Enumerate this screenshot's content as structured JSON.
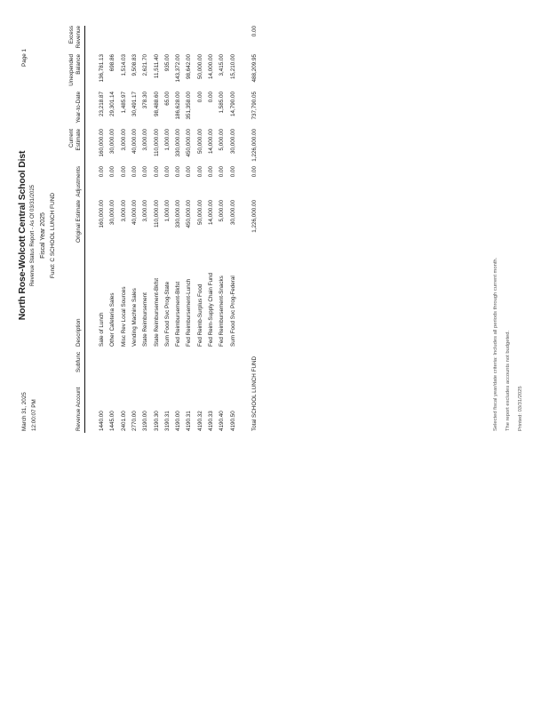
{
  "header": {
    "date": "March 31, 2025",
    "time": "12:00:07 PM",
    "title": "North Rose-Wolcott Central School Dist",
    "subtitle": "Revenue Status Report - As Of 03/31/2025",
    "fiscal_year": "Fiscal Year 2025",
    "fund": "Fund: C SCHOOL LUNCH FUND",
    "page": "Page 1"
  },
  "columns": [
    "Revenue Account",
    "Subfunc",
    "Description",
    "Original Estimate",
    "Adjustments",
    "Current Estimate",
    "Year-to-Date",
    "Unexpended Balance",
    "Excess Revenue"
  ],
  "rows": [
    {
      "account": "1440.00",
      "subfunc": "",
      "description": "Sale of Lunch",
      "original": "160,000.00",
      "adjustments": "0.00",
      "current": "160,000.00",
      "ytd": "23,218.87",
      "unexpended": "136,781.13",
      "excess": ""
    },
    {
      "account": "1445.00",
      "subfunc": "",
      "description": "Other Cafeteria Sales",
      "original": "30,000.00",
      "adjustments": "0.00",
      "current": "30,000.00",
      "ytd": "29,301.14",
      "unexpended": "698.86",
      "excess": ""
    },
    {
      "account": "2401.00",
      "subfunc": "",
      "description": "Misc Rev Local Sources",
      "original": "3,000.00",
      "adjustments": "0.00",
      "current": "3,000.00",
      "ytd": "1,485.97",
      "unexpended": "1,514.03",
      "excess": ""
    },
    {
      "account": "2770.00",
      "subfunc": "",
      "description": "Vending Machine Sales",
      "original": "40,000.00",
      "adjustments": "0.00",
      "current": "40,000.00",
      "ytd": "30,491.17",
      "unexpended": "9,508.83",
      "excess": ""
    },
    {
      "account": "3190.00",
      "subfunc": "",
      "description": "State Reimbursement",
      "original": "3,000.00",
      "adjustments": "0.00",
      "current": "3,000.00",
      "ytd": "378.30",
      "unexpended": "2,621.70",
      "excess": ""
    },
    {
      "account": "3190.30",
      "subfunc": "",
      "description": "State Reimbursement-Bkfst",
      "original": "110,000.00",
      "adjustments": "0.00",
      "current": "110,000.00",
      "ytd": "98,488.60",
      "unexpended": "11,511.40",
      "excess": ""
    },
    {
      "account": "3190.31",
      "subfunc": "",
      "description": "Sum Food Svc Prog-State",
      "original": "1,000.00",
      "adjustments": "0.00",
      "current": "1,000.00",
      "ytd": "65.00",
      "unexpended": "935.00",
      "excess": ""
    },
    {
      "account": "4190.00",
      "subfunc": "",
      "description": "Fed Reimbursement-Bkfst",
      "original": "330,000.00",
      "adjustments": "0.00",
      "current": "330,000.00",
      "ytd": "186,628.00",
      "unexpended": "143,372.00",
      "excess": ""
    },
    {
      "account": "4190.31",
      "subfunc": "",
      "description": "Fed Reimbursement-Lunch",
      "original": "450,000.00",
      "adjustments": "0.00",
      "current": "450,000.00",
      "ytd": "351,358.00",
      "unexpended": "98,642.00",
      "excess": ""
    },
    {
      "account": "4190.32",
      "subfunc": "",
      "description": "Fed Reimb-Surplus Food",
      "original": "50,000.00",
      "adjustments": "0.00",
      "current": "50,000.00",
      "ytd": "0.00",
      "unexpended": "50,000.00",
      "excess": ""
    },
    {
      "account": "4190.33",
      "subfunc": "",
      "description": "Fed Reim-Supply Chain Fund",
      "original": "14,000.00",
      "adjustments": "0.00",
      "current": "14,000.00",
      "ytd": "0.00",
      "unexpended": "14,000.00",
      "excess": ""
    },
    {
      "account": "4190.40",
      "subfunc": "",
      "description": "Fed Reimbursement-Snacks",
      "original": "5,000.00",
      "adjustments": "0.00",
      "current": "5,000.00",
      "ytd": "1,585.00",
      "unexpended": "3,415.00",
      "excess": ""
    },
    {
      "account": "4190.50",
      "subfunc": "",
      "description": "Sum Food Svc Prog-Federal",
      "original": "30,000.00",
      "adjustments": "0.00",
      "current": "30,000.00",
      "ytd": "14,790.00",
      "unexpended": "15,210.00",
      "excess": ""
    }
  ],
  "total": {
    "label": "Total SCHOOL LUNCH FUND",
    "original": "1,226,000.00",
    "adjustments": "0.00",
    "current": "1,226,000.00",
    "ytd": "737,790.05",
    "unexpended": "488,209.95",
    "excess": "0.00"
  },
  "notes": [
    "Selected fiscal year/date criteria: Includes all periods through current month.",
    "The report excludes accounts not budgeted.",
    "Printed: 03/31/2025"
  ]
}
